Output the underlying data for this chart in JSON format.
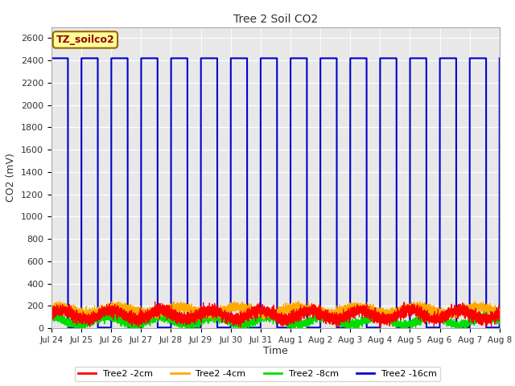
{
  "title": "Tree 2 Soil CO2",
  "ylabel": "CO2 (mV)",
  "xlabel": "Time",
  "ylim": [
    0,
    2700
  ],
  "yticks": [
    0,
    200,
    400,
    600,
    800,
    1000,
    1200,
    1400,
    1600,
    1800,
    2000,
    2200,
    2400,
    2600
  ],
  "fig_bg": "#ffffff",
  "plot_bg": "#e8e8e8",
  "legend_label": "TZ_soilco2",
  "legend_bg": "#ffff99",
  "legend_border": "#cc0000",
  "series_colors": {
    "2cm": "#ff0000",
    "4cm": "#ffaa00",
    "8cm": "#00dd00",
    "16cm": "#0000cc"
  },
  "series_labels": {
    "2cm": "Tree2 -2cm",
    "4cm": "Tree2 -4cm",
    "8cm": "Tree2 -8cm",
    "16cm": "Tree2 -16cm"
  },
  "x_tick_labels": [
    "Jul 24",
    "Jul 25",
    "Jul 26",
    "Jul 27",
    "Jul 28",
    "Jul 29",
    "Jul 30",
    "Jul 31",
    "Aug 1",
    "Aug 2",
    "Aug 3",
    "Aug 4",
    "Aug 5",
    "Aug 6",
    "Aug 7",
    "Aug 8"
  ],
  "num_days": 16,
  "blue_high": 2420,
  "blue_low": 5,
  "num_points": 8000
}
